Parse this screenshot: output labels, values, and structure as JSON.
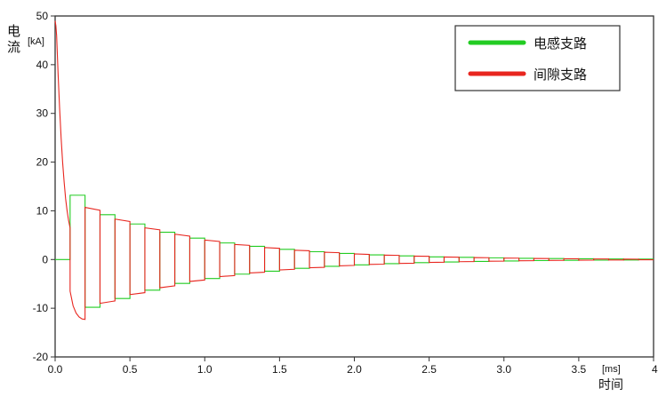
{
  "chart_data": {
    "type": "line",
    "title": "",
    "ylabel": "电流",
    "yunit": "[kA]",
    "xlabel": "时间",
    "xunit": "[ms]",
    "xlim": [
      0,
      4.0
    ],
    "ylim": [
      -20,
      50
    ],
    "x_ticks": [
      "0.0",
      "0.5",
      "1.0",
      "1.5",
      "2.0",
      "2.5",
      "3.0",
      "3.5",
      "4.0"
    ],
    "y_ticks": [
      "-20",
      "-10",
      "0",
      "10",
      "20",
      "30",
      "40",
      "50"
    ],
    "grid": false,
    "legend_position": "top-right",
    "series": [
      {
        "name": "电感支路",
        "color": "#22cc22",
        "x": [
          0.0,
          0.1,
          0.1,
          0.1,
          0.2,
          0.2,
          0.2,
          0.3,
          0.3,
          0.3,
          0.4,
          0.4,
          0.4,
          0.5,
          0.5,
          0.5,
          0.6,
          0.6,
          0.6,
          0.7,
          0.7,
          0.7,
          0.8,
          0.8,
          0.8,
          0.9,
          0.9,
          0.9,
          1.0,
          1.0,
          1.0,
          1.1,
          1.1,
          1.1,
          1.2,
          1.2,
          1.2,
          1.3,
          1.3,
          1.3,
          1.4,
          1.4,
          1.4,
          1.5,
          1.5,
          1.5,
          1.6,
          1.6,
          1.6,
          1.7,
          1.7,
          1.7,
          1.8,
          1.8,
          1.8,
          1.9,
          1.9,
          1.9,
          2.0,
          2.0,
          2.0,
          2.1,
          2.1,
          2.1,
          2.2,
          2.2,
          2.2,
          2.3,
          2.3,
          2.3,
          2.4,
          2.4,
          2.4,
          2.5,
          2.5,
          2.5,
          2.6,
          2.6,
          2.6,
          2.7,
          2.7,
          2.7,
          2.8,
          2.8,
          2.8,
          2.9,
          2.9,
          2.9,
          3.0,
          3.0,
          3.0,
          3.1,
          3.1,
          3.1,
          3.2,
          3.2,
          3.2,
          3.3,
          3.3,
          3.3,
          3.4,
          3.4,
          3.4,
          3.5,
          3.5,
          3.5,
          3.6,
          3.6,
          3.6,
          3.7,
          3.7,
          3.7,
          3.8,
          3.8,
          3.8,
          3.9,
          3.9,
          3.9,
          4.0
        ],
        "y": [
          0,
          0,
          13.2,
          13.2,
          13.2,
          -9.8,
          -9.8,
          -9.8,
          9.2,
          9.2,
          9.2,
          -8.0,
          -8.0,
          -8.0,
          7.3,
          7.3,
          7.3,
          -6.3,
          -6.3,
          -6.3,
          5.6,
          5.6,
          5.6,
          -4.9,
          -4.9,
          -4.9,
          4.4,
          4.4,
          4.4,
          -3.9,
          -3.9,
          -3.9,
          3.4,
          3.4,
          3.4,
          -3.0,
          -3.0,
          -3.0,
          2.7,
          2.7,
          2.7,
          -2.4,
          -2.4,
          -2.4,
          2.1,
          2.1,
          2.1,
          -1.8,
          -1.8,
          -1.8,
          1.6,
          1.6,
          1.6,
          -1.4,
          -1.4,
          -1.4,
          1.25,
          1.25,
          1.25,
          -1.1,
          -1.1,
          -1.1,
          0.95,
          0.95,
          0.95,
          -0.85,
          -0.85,
          -0.85,
          0.75,
          0.75,
          0.75,
          -0.65,
          -0.65,
          -0.65,
          0.55,
          0.55,
          0.55,
          -0.5,
          -0.5,
          -0.5,
          0.45,
          0.45,
          0.45,
          -0.4,
          -0.4,
          -0.4,
          0.35,
          0.35,
          0.35,
          -0.3,
          -0.3,
          -0.3,
          0.25,
          0.25,
          0.25,
          -0.22,
          -0.22,
          -0.22,
          0.2,
          0.2,
          0.2,
          -0.17,
          -0.17,
          -0.17,
          0.15,
          0.15,
          0.15,
          -0.13,
          -0.13,
          -0.13,
          0.11,
          0.11,
          0.11,
          -0.1,
          -0.1,
          -0.1,
          0.09,
          0.09,
          0.09
        ]
      },
      {
        "name": "间隙支路",
        "color": "#e8261f",
        "x": [
          0.0,
          0.005,
          0.01,
          0.02,
          0.03,
          0.04,
          0.05,
          0.06,
          0.07,
          0.08,
          0.09,
          0.1,
          0.1,
          0.12,
          0.14,
          0.16,
          0.18,
          0.2,
          0.2,
          0.3,
          0.3,
          0.4,
          0.4,
          0.5,
          0.5,
          0.6,
          0.6,
          0.7,
          0.7,
          0.8,
          0.8,
          0.9,
          0.9,
          1.0,
          1.0,
          1.1,
          1.1,
          1.2,
          1.2,
          1.3,
          1.3,
          1.4,
          1.4,
          1.5,
          1.5,
          1.6,
          1.6,
          1.7,
          1.7,
          1.8,
          1.8,
          1.9,
          1.9,
          2.0,
          2.0,
          2.1,
          2.1,
          2.2,
          2.2,
          2.3,
          2.3,
          2.4,
          2.4,
          2.5,
          2.5,
          2.6,
          2.6,
          2.7,
          2.7,
          2.8,
          2.8,
          2.9,
          2.9,
          3.0,
          3.0,
          3.1,
          3.1,
          3.2,
          3.2,
          3.3,
          3.3,
          3.4,
          3.4,
          3.5,
          3.5,
          3.6,
          3.6,
          3.7,
          3.7,
          3.8,
          3.8,
          3.9,
          3.9,
          4.0
        ],
        "y": [
          49,
          48,
          46,
          38,
          31,
          25,
          20,
          16,
          12.5,
          10,
          8,
          6.5,
          -6.5,
          -9.5,
          -11.0,
          -11.8,
          -12.2,
          -12.3,
          10.7,
          10.1,
          -9.0,
          -8.5,
          8.3,
          7.8,
          -7.2,
          -6.8,
          6.5,
          6.1,
          -5.8,
          -5.4,
          5.2,
          4.8,
          -4.5,
          -4.2,
          4.0,
          3.7,
          -3.5,
          -3.3,
          3.1,
          2.9,
          -2.75,
          -2.6,
          2.45,
          2.3,
          -2.15,
          -2.0,
          1.9,
          1.8,
          -1.7,
          -1.6,
          1.5,
          1.4,
          -1.3,
          -1.2,
          1.15,
          1.05,
          -1.0,
          -0.95,
          0.9,
          0.85,
          -0.8,
          -0.75,
          0.7,
          0.65,
          -0.6,
          -0.55,
          0.52,
          0.48,
          -0.45,
          -0.42,
          0.4,
          0.37,
          -0.35,
          -0.32,
          0.3,
          0.28,
          -0.26,
          -0.24,
          0.22,
          0.2,
          -0.19,
          -0.17,
          0.16,
          0.15,
          -0.14,
          -0.13,
          0.12,
          0.11,
          -0.1,
          -0.09,
          0.08,
          0.07,
          -0.06,
          -0.05
        ]
      }
    ]
  }
}
